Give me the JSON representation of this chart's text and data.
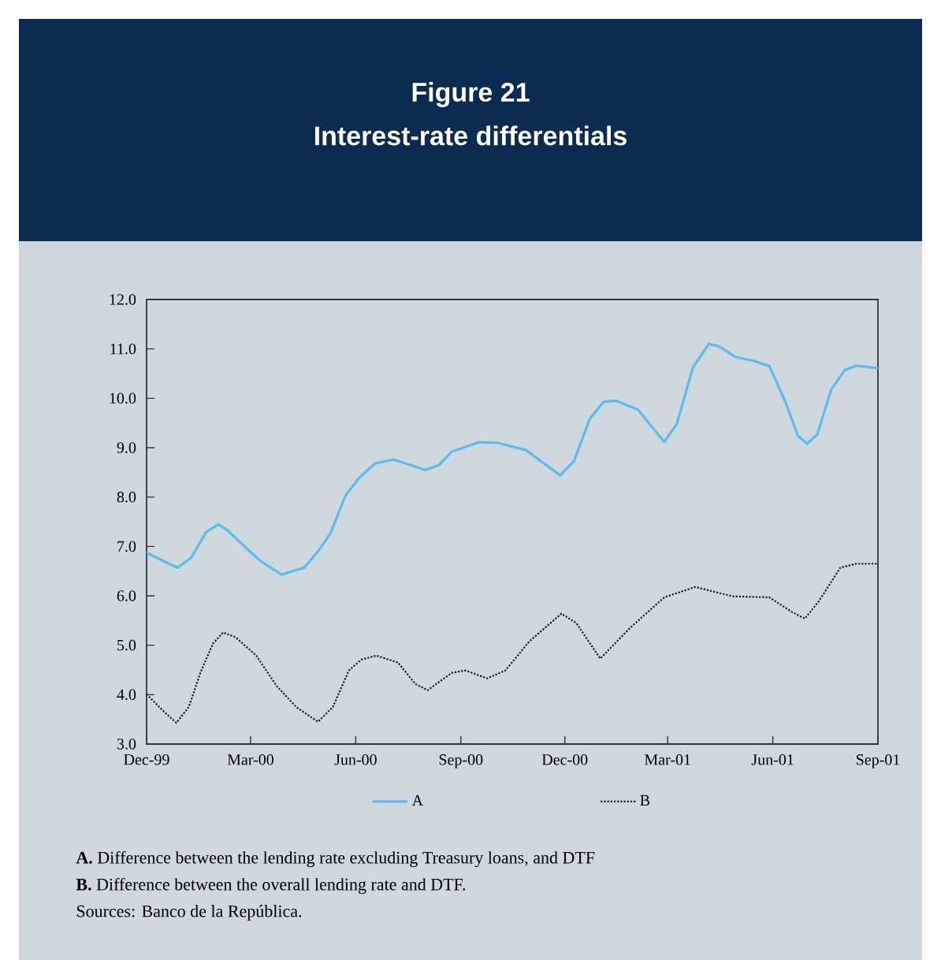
{
  "chart_data": {
    "type": "line",
    "title": "Figure 21",
    "subtitle": "Interest-rate differentials",
    "xlim": [
      "1999-12",
      "2001-09"
    ],
    "ylim": [
      3,
      12
    ],
    "xticks": [
      {
        "value": "1999-12",
        "label": "Dec-99"
      },
      {
        "value": "2000-03",
        "label": "Mar-00"
      },
      {
        "value": "2000-06",
        "label": "Jun-00"
      },
      {
        "value": "2000-09",
        "label": "Sep-00"
      },
      {
        "value": "2000-12",
        "label": "Dec-00"
      },
      {
        "value": "2001-03",
        "label": "Mar-01"
      },
      {
        "value": "2001-06",
        "label": "Jun-01"
      },
      {
        "value": "2001-09",
        "label": "Sep-01"
      }
    ],
    "yticks": [
      {
        "value": 3,
        "label": "3.0"
      },
      {
        "value": 4,
        "label": "4.0"
      },
      {
        "value": 5,
        "label": "5.0"
      },
      {
        "value": 6,
        "label": "6.0"
      },
      {
        "value": 7,
        "label": "7.0"
      },
      {
        "value": 8,
        "label": "8.0"
      },
      {
        "value": 9,
        "label": "9.0"
      },
      {
        "value": 10,
        "label": "10.0"
      },
      {
        "value": 11,
        "label": "11.0"
      },
      {
        "value": 12,
        "label": "12.0"
      }
    ],
    "legend": "bottom",
    "marker": "none",
    "series": [
      {
        "name": "A",
        "color": "#5bbcf0",
        "line_style": "solid",
        "x": [
          "1999-12-01",
          "1999-12-28",
          "2000-01-09",
          "2000-01-22",
          "2000-02-02",
          "2000-02-10",
          "2000-02-28",
          "2000-03-10",
          "2000-03-28",
          "2000-04-17",
          "2000-04-30",
          "2000-05-10",
          "2000-05-23",
          "2000-06-04",
          "2000-06-18",
          "2000-07-04",
          "2000-08-01",
          "2000-08-13",
          "2000-08-24",
          "2000-09-17",
          "2000-10-03",
          "2000-10-28",
          "2000-11-27",
          "2000-12-09",
          "2000-12-23",
          "2001-01-04",
          "2001-01-15",
          "2001-02-03",
          "2001-02-16",
          "2001-02-26",
          "2001-03-09",
          "2001-03-23",
          "2001-04-06",
          "2001-04-15",
          "2001-04-29",
          "2001-05-15",
          "2001-05-29",
          "2001-06-12",
          "2001-06-23",
          "2001-07-01",
          "2001-07-10",
          "2001-07-22",
          "2001-08-03",
          "2001-08-13",
          "2001-09-01"
        ],
        "values": [
          6.87,
          6.57,
          6.77,
          7.29,
          7.45,
          7.32,
          6.93,
          6.7,
          6.43,
          6.57,
          6.93,
          7.27,
          8.03,
          8.39,
          8.68,
          8.76,
          8.55,
          8.65,
          8.92,
          9.11,
          9.1,
          8.95,
          8.44,
          8.73,
          9.59,
          9.93,
          9.95,
          9.77,
          9.4,
          9.12,
          9.48,
          10.62,
          11.1,
          11.05,
          10.84,
          10.76,
          10.65,
          9.93,
          9.24,
          9.08,
          9.27,
          10.17,
          10.57,
          10.66,
          10.61
        ]
      },
      {
        "name": "B",
        "color": "#1a1a1a",
        "line_style": "dotted",
        "x": [
          "1999-12-01",
          "1999-12-16",
          "1999-12-27",
          "2000-01-07",
          "2000-01-17",
          "2000-01-28",
          "2000-02-06",
          "2000-02-17",
          "2000-03-06",
          "2000-03-24",
          "2000-04-10",
          "2000-04-29",
          "2000-05-12",
          "2000-05-26",
          "2000-06-06",
          "2000-06-19",
          "2000-07-08",
          "2000-07-23",
          "2000-08-03",
          "2000-08-24",
          "2000-09-05",
          "2000-09-24",
          "2000-10-10",
          "2000-10-31",
          "2000-11-28",
          "2000-12-11",
          "2001-01-01",
          "2001-01-27",
          "2001-02-26",
          "2001-03-25",
          "2001-04-27",
          "2001-05-29",
          "2001-06-18",
          "2001-06-29",
          "2001-07-11",
          "2001-07-30",
          "2001-08-13",
          "2001-09-01"
        ],
        "values": [
          4.01,
          3.66,
          3.43,
          3.75,
          4.44,
          5.03,
          5.26,
          5.16,
          4.79,
          4.17,
          3.75,
          3.45,
          3.75,
          4.49,
          4.71,
          4.79,
          4.65,
          4.22,
          4.09,
          4.44,
          4.49,
          4.33,
          4.49,
          5.08,
          5.64,
          5.45,
          4.73,
          5.35,
          5.97,
          6.18,
          5.99,
          5.97,
          5.67,
          5.54,
          5.88,
          6.57,
          6.65,
          6.65
        ]
      }
    ],
    "annotations": [
      "**A.** Difference between the lending rate excluding Treasury loans, and DTF",
      "**B.** Difference between the overall lending rate and DTF.",
      "Sources: Banco de la República."
    ]
  }
}
